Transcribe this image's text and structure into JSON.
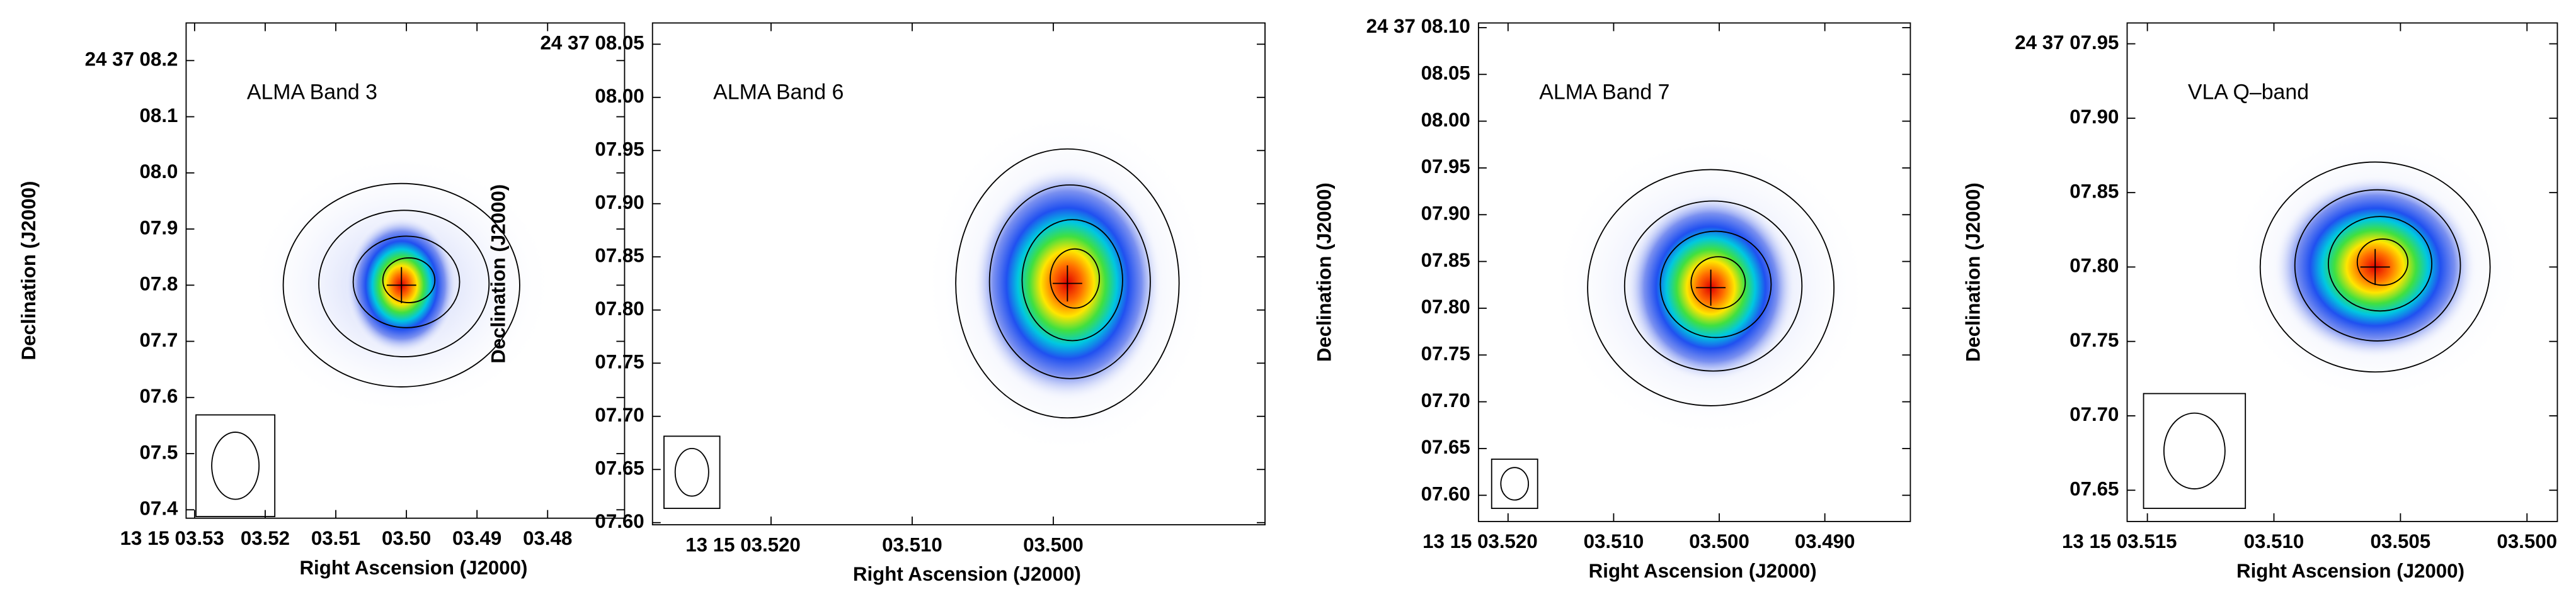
{
  "chart_data": [
    {
      "type": "image",
      "title": "ALMA Band 3",
      "xlabel": "Right Ascension (J2000)",
      "ylabel": "Declination (J2000)",
      "xlim": [
        3.5312,
        3.4691
      ],
      "ylim": [
        7.385,
        8.267
      ],
      "xticks": [
        {
          "value": 3.53,
          "label": "13 15 03.53"
        },
        {
          "value": 3.52,
          "label": "03.52"
        },
        {
          "value": 3.51,
          "label": "03.51"
        },
        {
          "value": 3.5,
          "label": "03.50"
        },
        {
          "value": 3.49,
          "label": "03.49"
        },
        {
          "value": 3.48,
          "label": "03.48"
        }
      ],
      "yticks": [
        {
          "value": 8.2,
          "label": "24 37 08.2"
        },
        {
          "value": 8.1,
          "label": "08.1"
        },
        {
          "value": 8.0,
          "label": "08.0"
        },
        {
          "value": 7.9,
          "label": "07.9"
        },
        {
          "value": 7.8,
          "label": "07.8"
        },
        {
          "value": 7.7,
          "label": "07.7"
        },
        {
          "value": 7.6,
          "label": "07.6"
        },
        {
          "value": 7.5,
          "label": "07.5"
        },
        {
          "value": 7.4,
          "label": "07.4"
        }
      ],
      "peak": {
        "x": 3.5007,
        "y": 7.8
      }
    },
    {
      "type": "image",
      "title": "ALMA Band 6",
      "xlabel": "Right Ascension (J2000)",
      "ylabel": "Declination (J2000)",
      "xlim": [
        3.5284,
        3.485
      ],
      "ylim": [
        7.598,
        8.07
      ],
      "xticks": [
        {
          "value": 3.52,
          "label": "13 15 03.520"
        },
        {
          "value": 3.51,
          "label": "03.510"
        },
        {
          "value": 3.5,
          "label": "03.500"
        }
      ],
      "yticks": [
        {
          "value": 8.05,
          "label": "24 37 08.05"
        },
        {
          "value": 8.0,
          "label": "08.00"
        },
        {
          "value": 7.95,
          "label": "07.95"
        },
        {
          "value": 7.9,
          "label": "07.90"
        },
        {
          "value": 7.85,
          "label": "07.85"
        },
        {
          "value": 7.8,
          "label": "07.80"
        },
        {
          "value": 7.75,
          "label": "07.75"
        },
        {
          "value": 7.7,
          "label": "07.70"
        },
        {
          "value": 7.65,
          "label": "07.65"
        },
        {
          "value": 7.6,
          "label": "07.60"
        }
      ],
      "peak": {
        "x": 3.499,
        "y": 7.825
      }
    },
    {
      "type": "image",
      "title": "ALMA Band 7",
      "xlabel": "Right Ascension (J2000)",
      "ylabel": "Declination (J2000)",
      "xlim": [
        3.5228,
        3.4819
      ],
      "ylim": [
        7.572,
        8.105
      ],
      "xticks": [
        {
          "value": 3.52,
          "label": "13 15 03.520"
        },
        {
          "value": 3.51,
          "label": "03.510"
        },
        {
          "value": 3.5,
          "label": "03.500"
        },
        {
          "value": 3.49,
          "label": "03.490"
        }
      ],
      "yticks": [
        {
          "value": 8.1,
          "label": "24 37 08.10"
        },
        {
          "value": 8.05,
          "label": "08.05"
        },
        {
          "value": 8.0,
          "label": "08.00"
        },
        {
          "value": 7.95,
          "label": "07.95"
        },
        {
          "value": 7.9,
          "label": "07.90"
        },
        {
          "value": 7.85,
          "label": "07.85"
        },
        {
          "value": 7.8,
          "label": "07.80"
        },
        {
          "value": 7.75,
          "label": "07.75"
        },
        {
          "value": 7.7,
          "label": "07.70"
        },
        {
          "value": 7.65,
          "label": "07.65"
        },
        {
          "value": 7.6,
          "label": "07.60"
        }
      ],
      "peak": {
        "x": 3.5008,
        "y": 7.822
      }
    },
    {
      "type": "image",
      "title": "VLA Q–band",
      "xlabel": "Right Ascension (J2000)",
      "ylabel": "Declination (J2000)",
      "xlim": [
        3.5158,
        3.4988
      ],
      "ylim": [
        7.629,
        7.964
      ],
      "xticks": [
        {
          "value": 3.515,
          "label": "13 15 03.515"
        },
        {
          "value": 3.51,
          "label": "03.510"
        },
        {
          "value": 3.505,
          "label": "03.505"
        },
        {
          "value": 3.5,
          "label": "03.500"
        }
      ],
      "yticks": [
        {
          "value": 7.95,
          "label": "24 37 07.95"
        },
        {
          "value": 7.9,
          "label": "07.90"
        },
        {
          "value": 7.85,
          "label": "07.85"
        },
        {
          "value": 7.8,
          "label": "07.80"
        },
        {
          "value": 7.75,
          "label": "07.75"
        },
        {
          "value": 7.7,
          "label": "07.70"
        },
        {
          "value": 7.65,
          "label": "07.65"
        }
      ],
      "peak": {
        "x": 3.506,
        "y": 7.8
      }
    }
  ]
}
